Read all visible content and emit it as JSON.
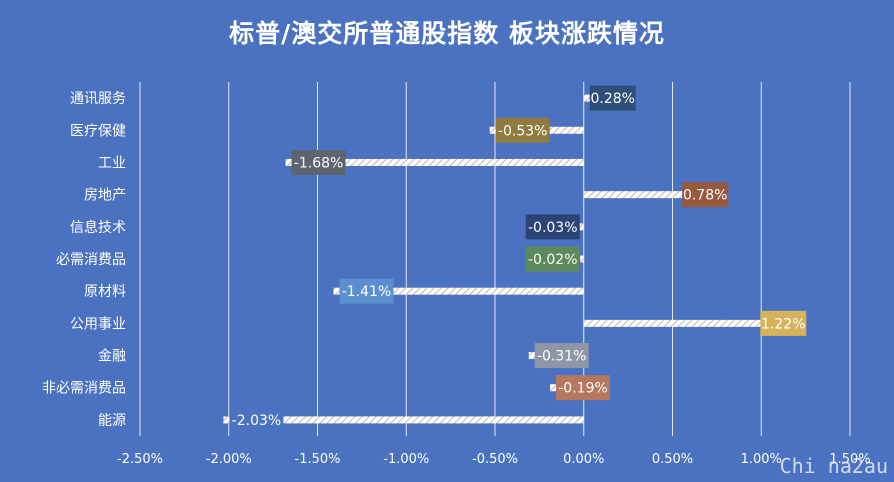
{
  "title": "标普/澳交所普通股指数 板块涨跌情况",
  "watermark": "Chi na2au",
  "chart_data": {
    "type": "bar",
    "orientation": "horizontal",
    "title": "标普/澳交所普通股指数 板块涨跌情况",
    "categories": [
      "通讯服务",
      "医疗保健",
      "工业",
      "房地产",
      "信息技术",
      "必需消费品",
      "原材料",
      "公用事业",
      "金融",
      "非必需消费品",
      "能源"
    ],
    "values": [
      0.28,
      -0.53,
      -1.68,
      0.78,
      -0.03,
      -0.02,
      -1.41,
      1.22,
      -0.31,
      -0.19,
      -2.03
    ],
    "value_labels": [
      "0.28%",
      "-0.53%",
      "-1.68%",
      "0.78%",
      "-0.03%",
      "-0.02%",
      "-1.41%",
      "1.22%",
      "-0.31%",
      "-0.19%",
      "-2.03%"
    ],
    "label_colors": [
      "#2f4f78",
      "#8f7a3f",
      "#5e6470",
      "#96583f",
      "#2c4475",
      "#5c8a5a",
      "#5b8fcf",
      "#d6b35a",
      "#8f96a6",
      "#b5775e",
      "#4a72c0"
    ],
    "xticks": [
      "-2.50%",
      "-2.00%",
      "-1.50%",
      "-1.00%",
      "-0.50%",
      "0.00%",
      "0.50%",
      "1.00%",
      "1.50%"
    ],
    "xlim": [
      -2.5,
      1.5
    ],
    "grid": true,
    "background": "#4a72c0",
    "bar_pattern": "diagonal-hatch",
    "gridline_color": "#ffffff"
  }
}
